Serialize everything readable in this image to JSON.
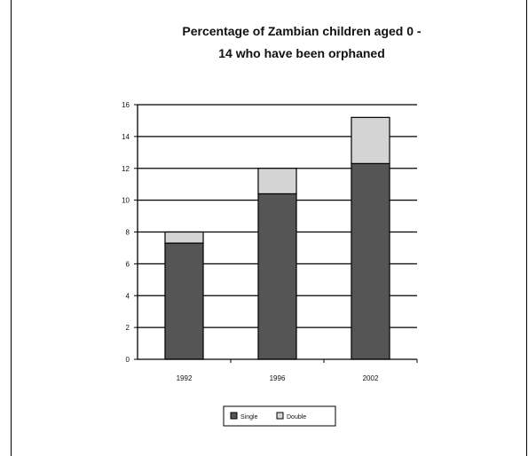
{
  "chart_data": {
    "type": "bar",
    "stacked": true,
    "title_line1": "Percentage of Zambian children aged 0 -",
    "title_line2": "14 who have been orphaned",
    "categories": [
      "1992",
      "1996",
      "2002"
    ],
    "series": [
      {
        "name": "Single",
        "values": [
          7.3,
          10.4,
          12.3
        ],
        "color": "#555555"
      },
      {
        "name": "Double",
        "values": [
          0.7,
          1.6,
          2.9
        ],
        "color": "#d4d4d4"
      }
    ],
    "ylim": [
      0,
      16
    ],
    "yticks": [
      "0",
      "2",
      "4",
      "6",
      "8",
      "10",
      "12",
      "14",
      "16"
    ],
    "grid": true,
    "legend_position": "bottom"
  }
}
